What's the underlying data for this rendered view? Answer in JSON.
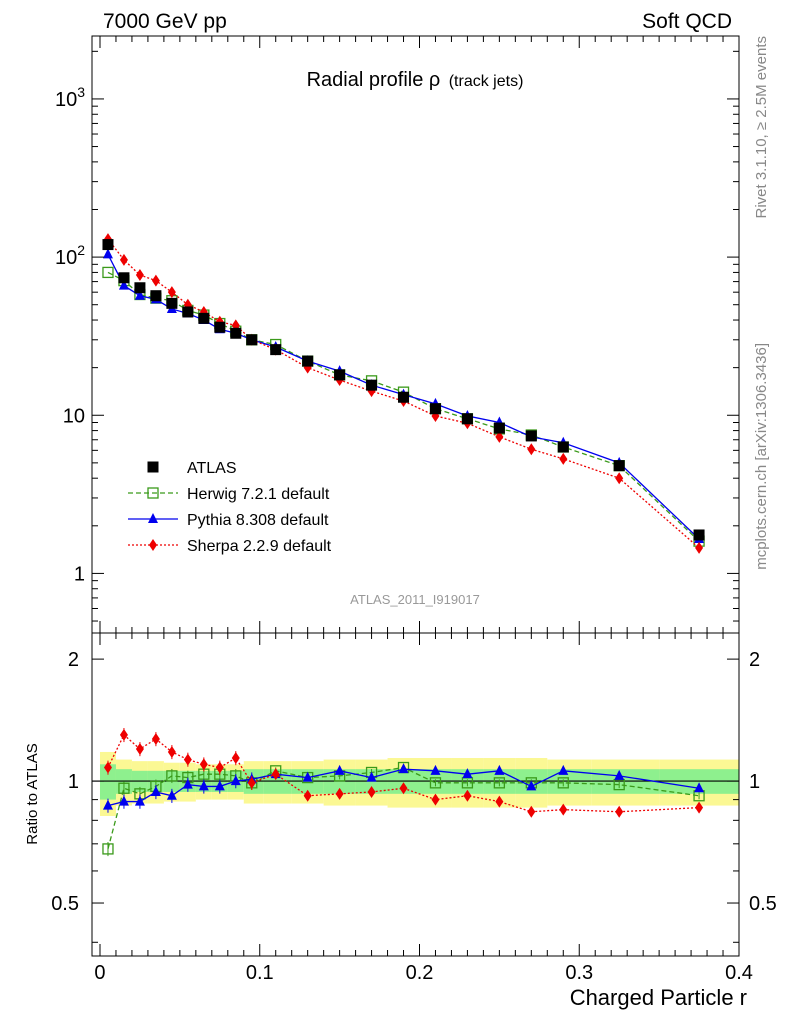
{
  "header": {
    "left": "7000 GeV pp",
    "right": "Soft QCD"
  },
  "side_labels": {
    "rivet": "Rivet 3.1.10, ≥ 2.5M events",
    "mcplots": "mcplots.cern.ch [arXiv:1306.3436]"
  },
  "chart_data": {
    "type": "line",
    "title_main": "Radial profile ρ",
    "title_sub": "(track jets)",
    "analysis_tag": "ATLAS_2011_I919017",
    "xlabel": "Charged Particle r",
    "ylabel_ratio": "Ratio to ATLAS",
    "xlim": [
      -0.005,
      0.4
    ],
    "main_ylim": [
      0.42,
      2500
    ],
    "main_yscale": "log",
    "ratio_ylim": [
      0.37,
      2.32
    ],
    "ratio_yscale": "log",
    "x_ticks": [
      {
        "value": 0,
        "label": "0"
      },
      {
        "value": 0.1,
        "label": "0.1"
      },
      {
        "value": 0.2,
        "label": "0.2"
      },
      {
        "value": 0.3,
        "label": "0.3"
      },
      {
        "value": 0.4,
        "label": "0.4"
      }
    ],
    "main_y_ticks": [
      {
        "value": 1000,
        "base": "10",
        "exp": "3"
      },
      {
        "value": 100,
        "base": "10",
        "exp": "2"
      },
      {
        "value": 10,
        "base": "10",
        "exp": ""
      },
      {
        "value": 1,
        "base": "1",
        "exp": ""
      }
    ],
    "ratio_y_ticks": [
      {
        "value": 2,
        "label": "2"
      },
      {
        "value": 1,
        "label": "1"
      },
      {
        "value": 0.5,
        "label": "0.5"
      }
    ],
    "x": [
      0.005,
      0.015,
      0.025,
      0.035,
      0.045,
      0.055,
      0.065,
      0.075,
      0.085,
      0.095,
      0.11,
      0.13,
      0.15,
      0.17,
      0.19,
      0.21,
      0.23,
      0.25,
      0.27,
      0.29,
      0.325,
      0.375
    ],
    "data": {
      "name": "ATLAS",
      "values": [
        120,
        74,
        64,
        57,
        51,
        45,
        41,
        36,
        33,
        30,
        26,
        22,
        18,
        15.5,
        13,
        11,
        9.5,
        8.3,
        7.4,
        6.3,
        4.8,
        1.75
      ],
      "ratio_band_inner": [
        0.1,
        0.07,
        0.06,
        0.06,
        0.06,
        0.06,
        0.06,
        0.06,
        0.06,
        0.07,
        0.07,
        0.07,
        0.07,
        0.07,
        0.07,
        0.07,
        0.07,
        0.07,
        0.07,
        0.07,
        0.07,
        0.07
      ],
      "ratio_band_outer": [
        0.18,
        0.13,
        0.12,
        0.12,
        0.11,
        0.11,
        0.1,
        0.1,
        0.1,
        0.12,
        0.12,
        0.12,
        0.13,
        0.13,
        0.14,
        0.14,
        0.14,
        0.14,
        0.14,
        0.13,
        0.13,
        0.13
      ]
    },
    "series": [
      {
        "name": "Herwig 7.2.1 default",
        "color": "#3a9a1a",
        "marker": "open-square",
        "line": "dashed",
        "values": [
          80,
          71,
          58,
          55,
          53,
          46,
          43,
          38,
          34,
          30,
          28,
          22,
          18,
          16.5,
          14,
          11,
          9.5,
          8.2,
          7.5,
          6.3,
          4.8,
          1.6
        ],
        "ratio": [
          0.68,
          0.96,
          0.93,
          0.97,
          1.03,
          1.02,
          1.04,
          1.04,
          1.03,
          0.99,
          1.06,
          1.02,
          1.03,
          1.05,
          1.08,
          0.99,
          0.99,
          0.99,
          0.99,
          0.99,
          0.98,
          0.92
        ]
      },
      {
        "name": "Pythia 8.308 default",
        "color": "#0000ee",
        "marker": "triangle",
        "line": "solid",
        "values": [
          104,
          66,
          57,
          54,
          47,
          44,
          40,
          35,
          33,
          30,
          27,
          22,
          19,
          15.5,
          13.5,
          11.8,
          9.9,
          9,
          7.3,
          6.7,
          5,
          1.65
        ],
        "ratio": [
          0.87,
          0.89,
          0.89,
          0.94,
          0.92,
          0.98,
          0.97,
          0.97,
          1.0,
          1.01,
          1.04,
          1.02,
          1.06,
          1.02,
          1.07,
          1.06,
          1.04,
          1.06,
          0.97,
          1.06,
          1.03,
          0.96
        ]
      },
      {
        "name": "Sherpa 2.2.9 default",
        "color": "#ee0000",
        "marker": "diamond",
        "line": "dotted",
        "values": [
          130,
          96,
          77,
          71,
          60,
          50,
          45,
          39,
          37,
          30,
          26,
          20,
          16.7,
          14.2,
          12.3,
          9.9,
          8.9,
          7.3,
          6.1,
          5.3,
          4,
          1.45
        ],
        "ratio": [
          1.08,
          1.3,
          1.2,
          1.27,
          1.18,
          1.13,
          1.1,
          1.08,
          1.14,
          0.99,
          1.04,
          0.92,
          0.93,
          0.94,
          0.96,
          0.9,
          0.92,
          0.89,
          0.84,
          0.85,
          0.84,
          0.86
        ]
      }
    ],
    "legend_position": "middle-left"
  }
}
